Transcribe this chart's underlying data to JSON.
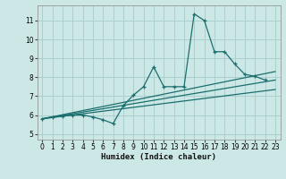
{
  "title": "",
  "xlabel": "Humidex (Indice chaleur)",
  "bg_color": "#cce8e6",
  "grid_color": "#aacfcd",
  "line_color": "#1a6e6e",
  "xlim": [
    -0.5,
    23.5
  ],
  "ylim": [
    4.7,
    11.8
  ],
  "yticks": [
    5,
    6,
    7,
    8,
    9,
    10,
    11
  ],
  "xticks": [
    0,
    1,
    2,
    3,
    4,
    5,
    6,
    7,
    8,
    9,
    10,
    11,
    12,
    13,
    14,
    15,
    16,
    17,
    18,
    19,
    20,
    21,
    22,
    23
  ],
  "series1_x": [
    0,
    1,
    2,
    3,
    4,
    5,
    6,
    7,
    8,
    9,
    10,
    11,
    12,
    13,
    14,
    15,
    16,
    17,
    18,
    19,
    20,
    21,
    22
  ],
  "series1_y": [
    5.8,
    5.9,
    5.95,
    6.0,
    6.0,
    5.9,
    5.75,
    5.55,
    6.5,
    7.05,
    7.5,
    8.55,
    7.5,
    7.5,
    7.5,
    11.35,
    11.0,
    9.35,
    9.35,
    8.7,
    8.15,
    8.05,
    7.85
  ],
  "series2_x": [
    0,
    23
  ],
  "series2_y": [
    5.8,
    8.3
  ],
  "series3_x": [
    0,
    23
  ],
  "series3_y": [
    5.8,
    7.85
  ],
  "series4_x": [
    0,
    23
  ],
  "series4_y": [
    5.8,
    7.35
  ]
}
